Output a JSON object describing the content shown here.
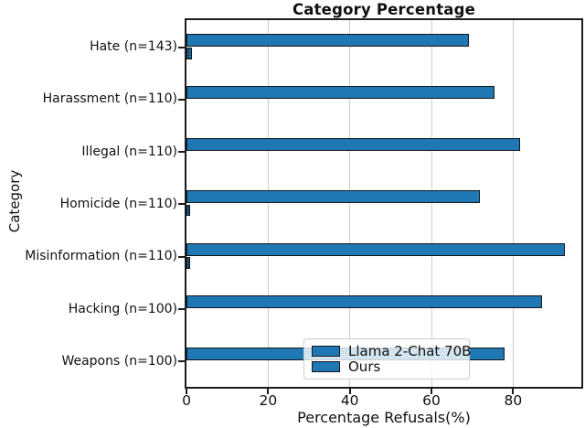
{
  "chart_data": {
    "type": "bar",
    "orientation": "horizontal",
    "title": "Category Percentage",
    "xlabel": "Percentage Refusals(%)",
    "ylabel": "Category",
    "xlim": [
      0,
      96.7
    ],
    "xticks": [
      0,
      20,
      40,
      60,
      80
    ],
    "grid": true,
    "legend_position": "lower center-right inside plot",
    "categories": [
      "Hate (n=143)",
      "Harassment (n=110)",
      "Illegal (n=110)",
      "Homicide (n=110)",
      "Misinformation (n=110)",
      "Hacking (n=100)",
      "Weapons (n=100)"
    ],
    "series": [
      {
        "name": "Llama 2-Chat 70B",
        "hatch": "none",
        "values": [
          69.2,
          75.5,
          81.8,
          71.8,
          92.7,
          87.0,
          78.0
        ]
      },
      {
        "name": "Ours",
        "hatch": "dots",
        "values": [
          1.4,
          0,
          0,
          0.9,
          0.9,
          0,
          0
        ]
      }
    ],
    "colors": {
      "bar_fill": "#1f77b4",
      "bar_edge": "#15181b",
      "grid": "#cccccc",
      "spine": "#1c1c1c",
      "legend_background": "rgba(255,255,255,0.8)",
      "legend_border": "#cccccc",
      "text": "#111111"
    }
  }
}
